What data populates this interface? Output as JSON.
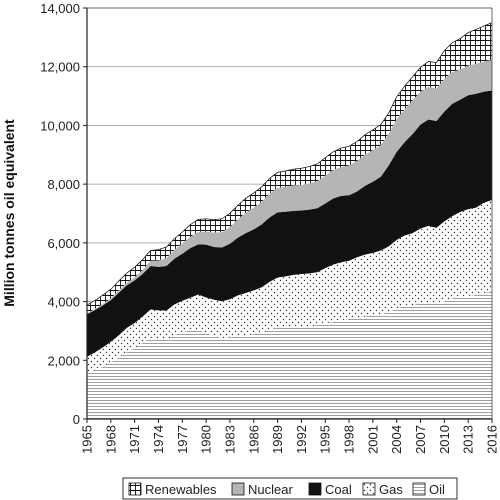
{
  "chart_data": {
    "type": "area",
    "title": "",
    "xlabel": "",
    "ylabel": "Million tonnes oil equivalent",
    "ylim": [
      0,
      14000
    ],
    "xlim": [
      1965,
      2016
    ],
    "yticks": [
      0,
      2000,
      4000,
      6000,
      8000,
      10000,
      12000,
      14000
    ],
    "ytick_labels": [
      "0",
      "2,000",
      "4,000",
      "6,000",
      "8,000",
      "10,000",
      "12,000",
      "14,000"
    ],
    "xticks": [
      1965,
      1968,
      1971,
      1974,
      1977,
      1980,
      1983,
      1986,
      1989,
      1992,
      1995,
      1998,
      2001,
      2004,
      2007,
      2010,
      2013,
      2016
    ],
    "grid": "horizontal",
    "stacked": true,
    "legend_position": "bottom",
    "x": [
      1965,
      1966,
      1967,
      1968,
      1969,
      1970,
      1971,
      1972,
      1973,
      1974,
      1975,
      1976,
      1977,
      1978,
      1979,
      1980,
      1981,
      1982,
      1983,
      1984,
      1985,
      1986,
      1987,
      1988,
      1989,
      1990,
      1991,
      1992,
      1993,
      1994,
      1995,
      1996,
      1997,
      1998,
      1999,
      2000,
      2001,
      2002,
      2003,
      2004,
      2005,
      2006,
      2007,
      2008,
      2009,
      2010,
      2011,
      2012,
      2013,
      2014,
      2015,
      2016
    ],
    "series": [
      {
        "name": "Oil",
        "pattern": "horizontal-lines",
        "values": [
          1550,
          1650,
          1780,
          1930,
          2100,
          2280,
          2410,
          2590,
          2780,
          2720,
          2700,
          2860,
          2960,
          3020,
          3040,
          2920,
          2820,
          2760,
          2780,
          2810,
          2830,
          2890,
          2940,
          3030,
          3110,
          3120,
          3130,
          3140,
          3160,
          3200,
          3260,
          3300,
          3370,
          3390,
          3460,
          3500,
          3520,
          3560,
          3640,
          3770,
          3850,
          3870,
          3950,
          3960,
          3940,
          4000,
          4110,
          4170,
          4190,
          4220,
          4310,
          4330
        ]
      },
      {
        "name": "Gas",
        "pattern": "dots",
        "values": [
          570,
          620,
          660,
          700,
          750,
          820,
          860,
          900,
          950,
          980,
          990,
          1040,
          1070,
          1110,
          1200,
          1220,
          1240,
          1250,
          1300,
          1400,
          1460,
          1490,
          1550,
          1640,
          1710,
          1740,
          1780,
          1800,
          1800,
          1800,
          1880,
          1960,
          1970,
          2000,
          2050,
          2100,
          2140,
          2180,
          2240,
          2330,
          2400,
          2460,
          2540,
          2620,
          2570,
          2730,
          2800,
          2880,
          2960,
          2980,
          3060,
          3130
        ]
      },
      {
        "name": "Coal",
        "pattern": "solid-black",
        "values": [
          1450,
          1440,
          1430,
          1420,
          1450,
          1450,
          1450,
          1450,
          1480,
          1480,
          1520,
          1560,
          1600,
          1690,
          1710,
          1800,
          1800,
          1830,
          1890,
          1970,
          2040,
          2080,
          2140,
          2200,
          2220,
          2200,
          2180,
          2160,
          2170,
          2180,
          2200,
          2250,
          2260,
          2230,
          2240,
          2340,
          2420,
          2510,
          2760,
          3000,
          3180,
          3380,
          3540,
          3620,
          3640,
          3740,
          3830,
          3830,
          3880,
          3880,
          3780,
          3730
        ]
      },
      {
        "name": "Nuclear",
        "pattern": "gray",
        "values": [
          30,
          40,
          50,
          60,
          80,
          90,
          110,
          140,
          180,
          220,
          270,
          300,
          350,
          390,
          420,
          450,
          490,
          530,
          570,
          620,
          700,
          740,
          770,
          810,
          830,
          850,
          870,
          870,
          890,
          920,
          950,
          970,
          990,
          1020,
          1040,
          1060,
          1080,
          1080,
          1080,
          1120,
          1120,
          1140,
          1120,
          1110,
          1100,
          1120,
          1080,
          1020,
          1010,
          1020,
          1030,
          1040
        ]
      },
      {
        "name": "Renewables",
        "pattern": "grid",
        "values": [
          280,
          290,
          300,
          310,
          320,
          330,
          340,
          350,
          350,
          370,
          380,
          380,
          390,
          410,
          430,
          430,
          440,
          450,
          470,
          480,
          490,
          500,
          510,
          520,
          530,
          540,
          550,
          570,
          580,
          590,
          610,
          620,
          640,
          650,
          660,
          680,
          690,
          700,
          710,
          760,
          790,
          810,
          830,
          870,
          890,
          960,
          1000,
          1060,
          1120,
          1170,
          1210,
          1270
        ]
      }
    ]
  },
  "legend": {
    "items": [
      {
        "key": "renewables",
        "label": "Renewables"
      },
      {
        "key": "nuclear",
        "label": "Nuclear"
      },
      {
        "key": "coal",
        "label": "Coal"
      },
      {
        "key": "gas",
        "label": "Gas"
      },
      {
        "key": "oil",
        "label": "Oil"
      }
    ]
  }
}
